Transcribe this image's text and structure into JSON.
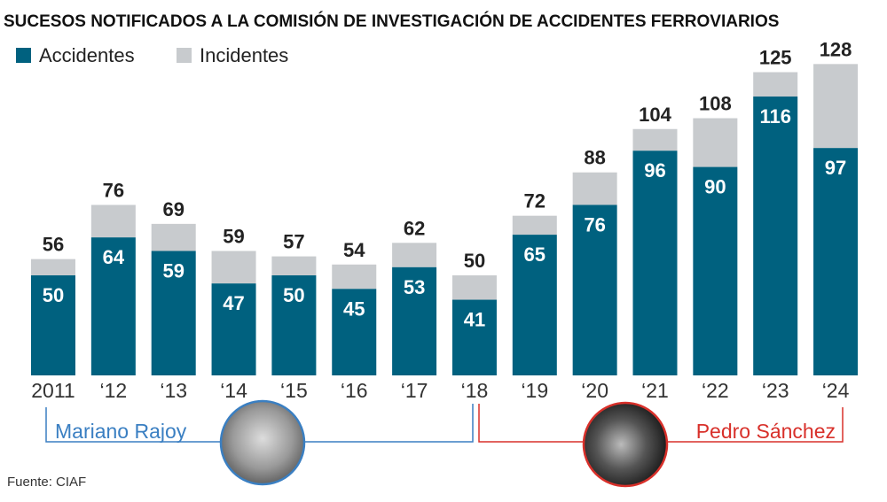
{
  "chart_data": {
    "type": "bar",
    "stacked": true,
    "title": "SUCESOS NOTIFICADOS A LA COMISIÓN DE INVESTIGACIÓN DE ACCIDENTES FERROVIARIOS",
    "categories": [
      "2011",
      "‘12",
      "‘13",
      "‘14",
      "‘15",
      "‘16",
      "‘17",
      "‘18",
      "‘19",
      "‘20",
      "‘21",
      "‘22",
      "‘23",
      "‘24"
    ],
    "series": [
      {
        "name": "Accidentes",
        "color": "#00617f",
        "values": [
          50,
          64,
          59,
          47,
          50,
          45,
          53,
          41,
          65,
          76,
          96,
          90,
          116,
          97
        ]
      },
      {
        "name": "Incidentes",
        "color": "#c8cbce",
        "values": [
          6,
          12,
          10,
          12,
          7,
          9,
          9,
          9,
          7,
          12,
          8,
          18,
          9,
          31
        ]
      }
    ],
    "totals": [
      56,
      76,
      69,
      59,
      57,
      54,
      62,
      50,
      72,
      88,
      104,
      108,
      125,
      128
    ],
    "legend_position": "top-left",
    "grid": false,
    "periods": [
      {
        "label": "Mariano Rajoy",
        "from": "2011",
        "to": "‘18",
        "color": "#3a7fc2",
        "portrait": "mariano-rajoy-portrait"
      },
      {
        "label": "Pedro Sánchez",
        "from": "‘18",
        "to": "‘24",
        "color": "#d8302a",
        "portrait": "pedro-sanchez-portrait"
      }
    ],
    "source": "Fuente: CIAF"
  }
}
